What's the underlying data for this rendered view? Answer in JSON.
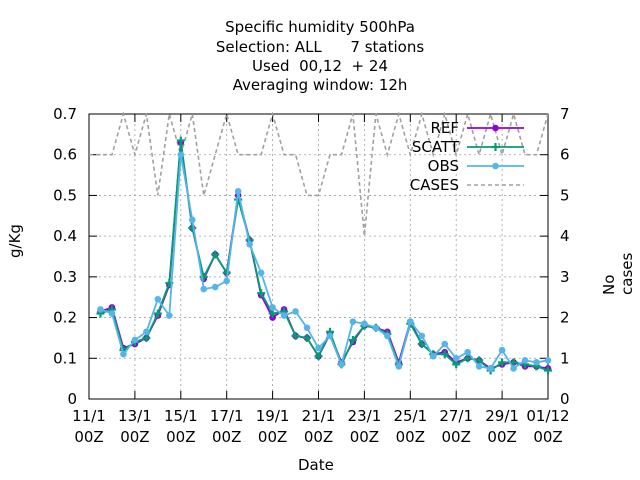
{
  "title_lines": [
    "Specific humidity 500hPa",
    "Selection: ALL      7 stations",
    "Used  00,12  + 24",
    "Averaging window: 12h"
  ],
  "chart_data": {
    "type": "line",
    "xlabel": "Date",
    "ylabel": "g/Kg",
    "y2label": "No cases",
    "ylim": [
      0,
      0.7
    ],
    "y2lim": [
      0,
      7
    ],
    "xlim": [
      0,
      20
    ],
    "yticks": [
      "0",
      "0.1",
      "0.2",
      "0.3",
      "0.4",
      "0.5",
      "0.6",
      "0.7"
    ],
    "y2ticks": [
      "0",
      "1",
      "2",
      "3",
      "4",
      "5",
      "6",
      "7"
    ],
    "xticks": [
      [
        "11/1",
        "00Z"
      ],
      [
        "13/1",
        "00Z"
      ],
      [
        "15/1",
        "00Z"
      ],
      [
        "17/1",
        "00Z"
      ],
      [
        "19/1",
        "00Z"
      ],
      [
        "21/1",
        "00Z"
      ],
      [
        "23/1",
        "00Z"
      ],
      [
        "25/1",
        "00Z"
      ],
      [
        "27/1",
        "00Z"
      ],
      [
        "29/1",
        "00Z"
      ],
      [
        "01/12",
        "00Z"
      ]
    ],
    "x_unit": "days since 11/1 00Z",
    "grid": true,
    "legend_position": "top-right",
    "series": [
      {
        "name": "REF",
        "color": "#9400d3",
        "marker": "circle",
        "axis": "y",
        "x": [
          0.5,
          1,
          1.5,
          2,
          2.5,
          3,
          3.5,
          4,
          4.5,
          5,
          5.5,
          6,
          6.5,
          7,
          7.5,
          8,
          8.5,
          9,
          9.5,
          10,
          10.5,
          11,
          11.5,
          12,
          12.5,
          13,
          13.5,
          14,
          14.5,
          15,
          15.5,
          16,
          16.5,
          17,
          17.5,
          18,
          18.5,
          19,
          19.5,
          20
        ],
        "values": [
          0.215,
          0.225,
          0.125,
          0.135,
          0.15,
          0.205,
          0.28,
          0.63,
          0.42,
          0.295,
          0.355,
          0.31,
          0.5,
          0.39,
          0.255,
          0.2,
          0.22,
          0.155,
          0.15,
          0.105,
          0.16,
          0.09,
          0.14,
          0.18,
          0.175,
          0.165,
          0.09,
          0.19,
          0.135,
          0.11,
          0.115,
          0.09,
          0.1,
          0.095,
          0.075,
          0.085,
          0.09,
          0.08,
          0.08,
          0.075
        ]
      },
      {
        "name": "SCATT",
        "color": "#009e73",
        "marker": "plus",
        "axis": "y",
        "x": [
          0.5,
          1,
          1.5,
          2,
          2.5,
          3,
          3.5,
          4,
          4.5,
          5,
          5.5,
          6,
          6.5,
          7,
          7.5,
          8,
          8.5,
          9,
          9.5,
          10,
          10.5,
          11,
          11.5,
          12,
          12.5,
          13,
          13.5,
          14,
          14.5,
          15,
          15.5,
          16,
          16.5,
          17,
          17.5,
          18,
          18.5,
          19,
          19.5,
          20
        ],
        "values": [
          0.21,
          0.22,
          0.12,
          0.14,
          0.15,
          0.21,
          0.285,
          0.635,
          0.42,
          0.3,
          0.355,
          0.31,
          0.49,
          0.39,
          0.26,
          0.21,
          0.215,
          0.155,
          0.15,
          0.105,
          0.165,
          0.085,
          0.145,
          0.18,
          0.175,
          0.16,
          0.085,
          0.185,
          0.135,
          0.11,
          0.11,
          0.085,
          0.1,
          0.095,
          0.07,
          0.09,
          0.09,
          0.085,
          0.08,
          0.07
        ]
      },
      {
        "name": "OBS",
        "color": "#56b4e9",
        "marker": "circle",
        "axis": "y",
        "x": [
          0.5,
          1,
          1.5,
          2,
          2.5,
          3,
          3.5,
          4,
          4.5,
          5,
          5.5,
          6,
          6.5,
          7,
          7.5,
          8,
          8.5,
          9,
          9.5,
          10,
          10.5,
          11,
          11.5,
          12,
          12.5,
          13,
          13.5,
          14,
          14.5,
          15,
          15.5,
          16,
          16.5,
          17,
          17.5,
          18,
          18.5,
          19,
          19.5,
          20
        ],
        "values": [
          0.22,
          0.21,
          0.11,
          0.145,
          0.165,
          0.245,
          0.205,
          0.6,
          0.44,
          0.27,
          0.275,
          0.29,
          0.51,
          0.38,
          0.31,
          0.225,
          0.205,
          0.215,
          0.175,
          0.125,
          0.155,
          0.085,
          0.19,
          0.185,
          0.175,
          0.155,
          0.08,
          0.19,
          0.155,
          0.105,
          0.135,
          0.1,
          0.115,
          0.08,
          0.075,
          0.12,
          0.075,
          0.095,
          0.09,
          0.095
        ]
      },
      {
        "name": "CASES",
        "color": "#a0a0a0",
        "marker": "none",
        "dashed": true,
        "axis": "y2",
        "x": [
          0,
          0.5,
          1,
          1.5,
          2,
          2.5,
          3,
          3.5,
          4,
          4.5,
          5,
          5.5,
          6,
          6.5,
          7,
          7.5,
          8,
          8.5,
          9,
          9.5,
          10,
          10.5,
          11,
          11.5,
          12,
          12.5,
          13,
          13.5,
          14,
          14.5,
          15,
          15.5,
          16,
          16.5,
          17,
          17.5,
          18,
          18.5,
          19,
          19.5,
          20
        ],
        "values": [
          6,
          6,
          6,
          7,
          6,
          7,
          5,
          7,
          6,
          7,
          5,
          6,
          7,
          6,
          6,
          6,
          7,
          6,
          6,
          5,
          5,
          6,
          6,
          7,
          4,
          7,
          6,
          7,
          6,
          7,
          6,
          7,
          6,
          7,
          6,
          7,
          6,
          7,
          6,
          6,
          7
        ]
      }
    ]
  }
}
